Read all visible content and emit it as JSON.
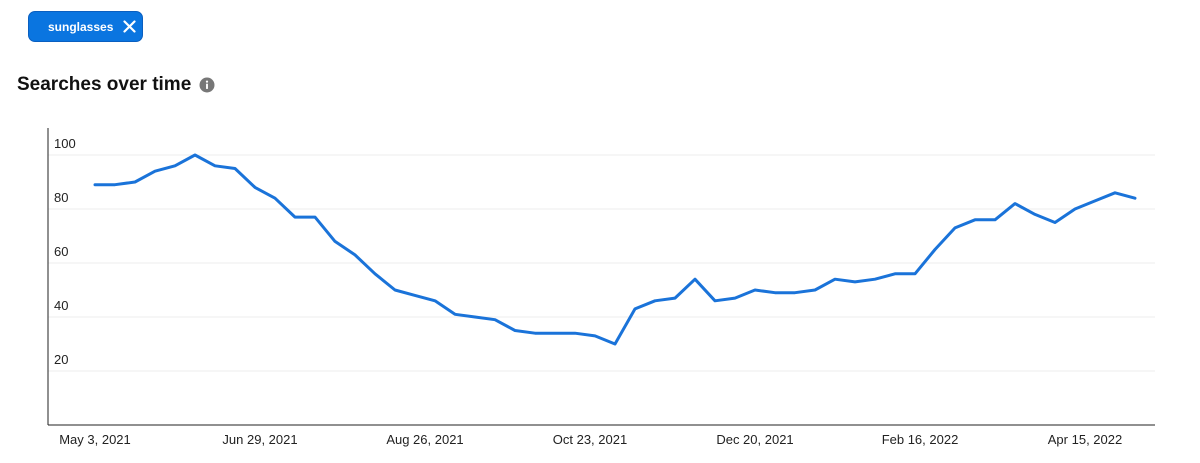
{
  "filter_chip": {
    "label": "sunglasses",
    "color": "#0a75e0"
  },
  "section": {
    "title": "Searches over time",
    "info_icon": "info-icon"
  },
  "chart_data": {
    "type": "line",
    "title": "",
    "xlabel": "",
    "ylabel": "",
    "ylim": [
      0,
      110
    ],
    "y_ticks": [
      20,
      40,
      60,
      80,
      100
    ],
    "x_tick_labels": [
      "May 3, 2021",
      "Jun 29, 2021",
      "Aug 26, 2021",
      "Oct 23, 2021",
      "Dec 20, 2021",
      "Feb 16, 2022",
      "Apr 15, 2022"
    ],
    "grid": "horizontal",
    "line_color": "#1a73d9",
    "series": [
      {
        "values": [
          89,
          89,
          90,
          94,
          96,
          100,
          96,
          95,
          88,
          84,
          77,
          77,
          68,
          63,
          56,
          50,
          48,
          46,
          41,
          40,
          39,
          35,
          34,
          34,
          34,
          33,
          30,
          43,
          46,
          47,
          54,
          46,
          47,
          50,
          49,
          49,
          50,
          54,
          53,
          54,
          56,
          56,
          65,
          73,
          76,
          76,
          82,
          78,
          75,
          80,
          83,
          86,
          84
        ]
      }
    ]
  }
}
